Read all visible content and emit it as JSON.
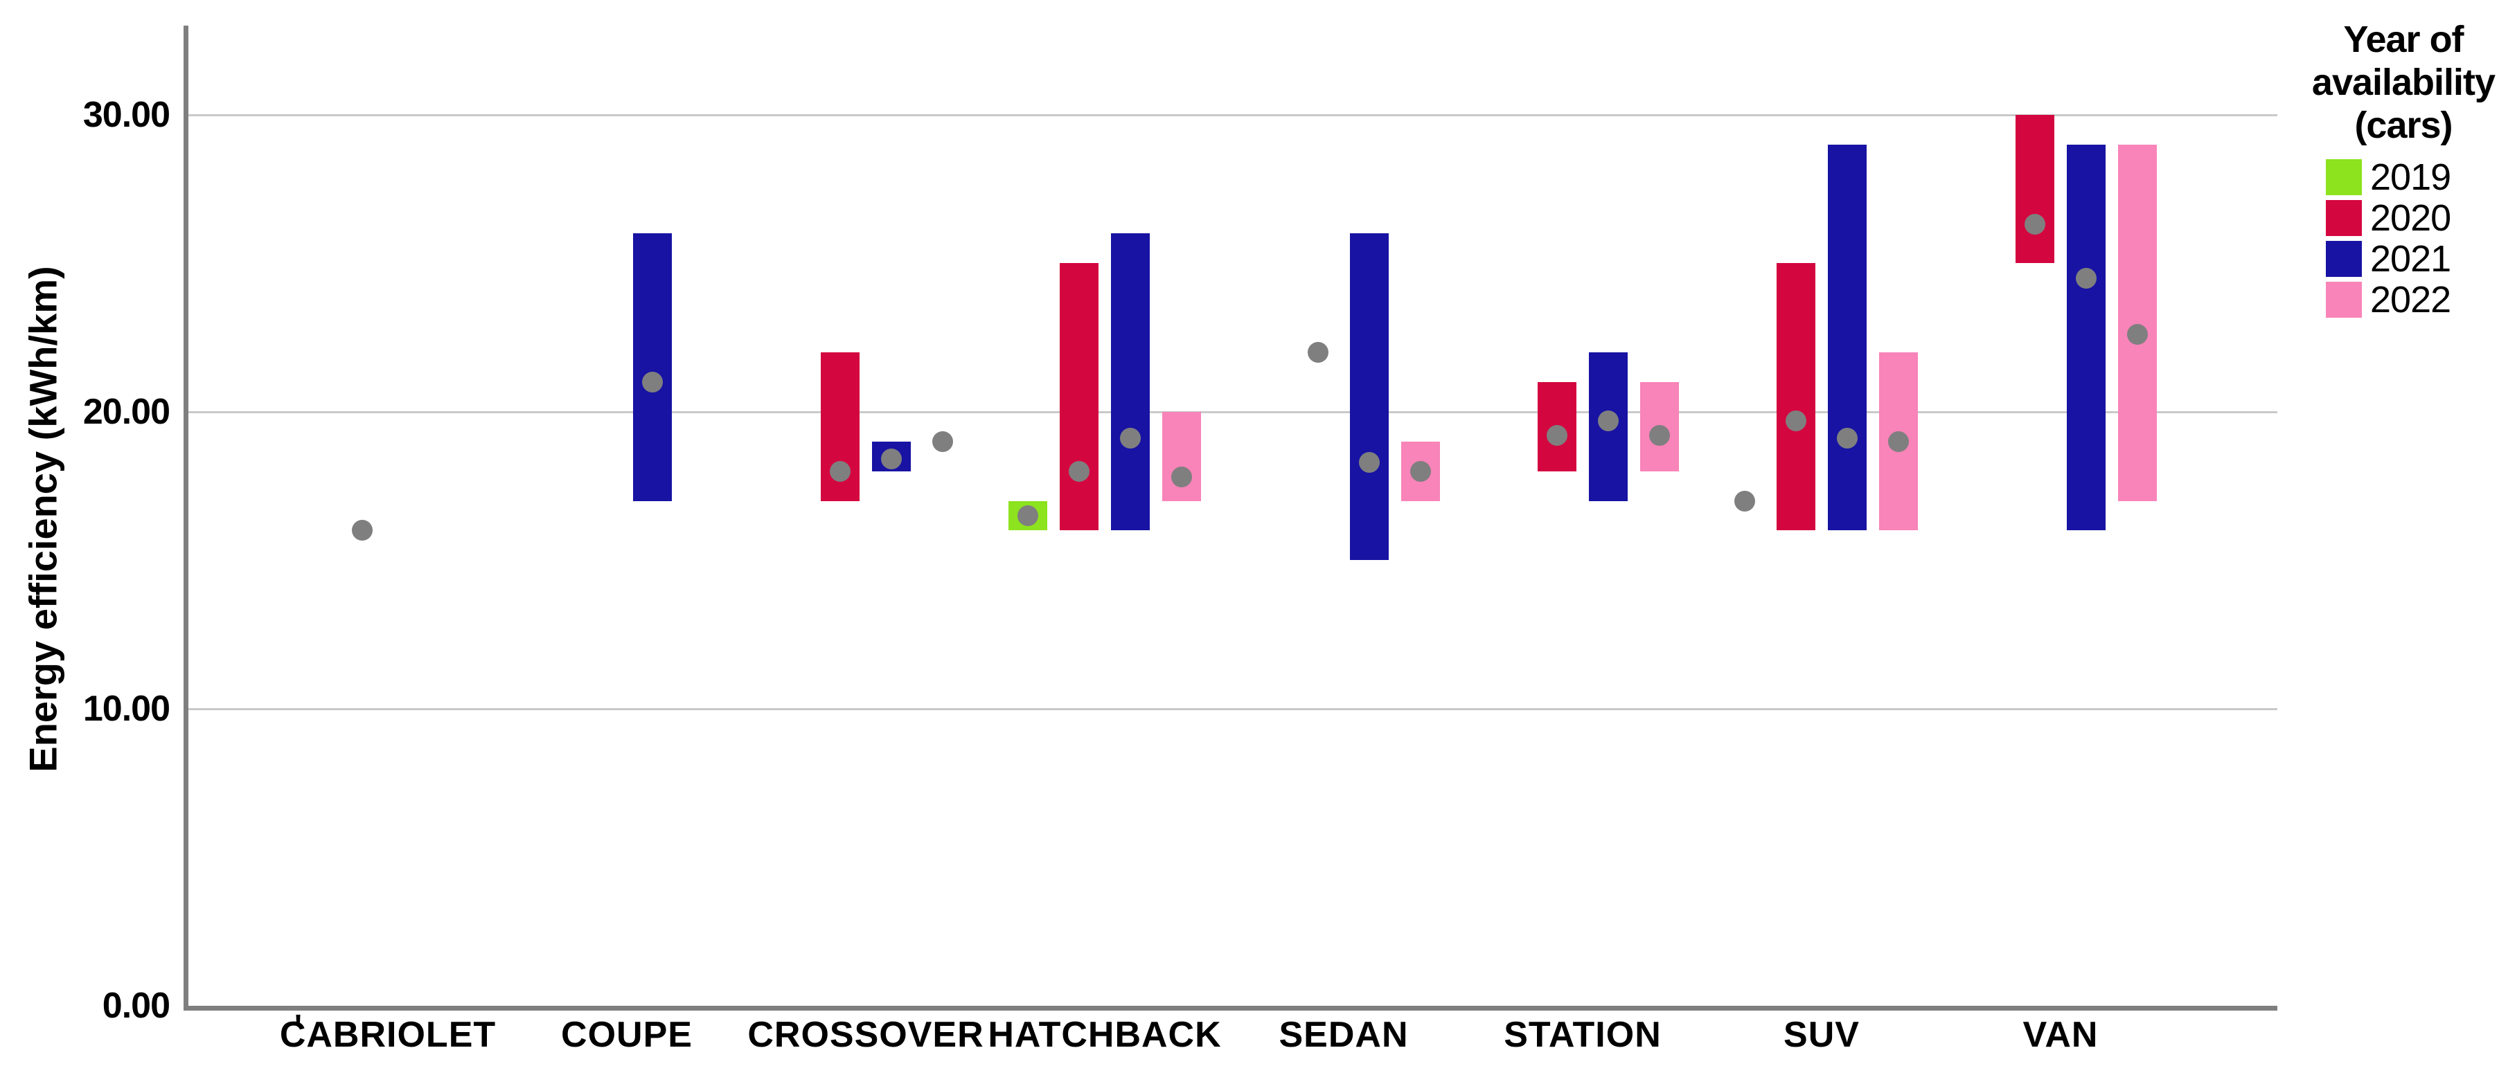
{
  "figure": {
    "ylabel": "Energy efficiency (kWh/km)",
    "x_axis_artifact": "'"
  },
  "legend": {
    "title_lines": [
      "Year of",
      "availability",
      "(cars)"
    ],
    "entries": [
      {
        "label": "2019",
        "color": "#8CE31E"
      },
      {
        "label": "2020",
        "color": "#D4063F"
      },
      {
        "label": "2021",
        "color": "#1813A3"
      },
      {
        "label": "2022",
        "color": "#F884B9"
      }
    ]
  },
  "chart_data": {
    "type": "bar",
    "subtype": "range-bar-with-mean-dot",
    "title": "",
    "xlabel": "",
    "ylabel": "Energy efficiency (kWh/km)",
    "ylim": [
      0,
      33
    ],
    "yticks": [
      {
        "value": 0,
        "label": "0.00"
      },
      {
        "value": 10,
        "label": "10.00"
      },
      {
        "value": 20,
        "label": "20.00"
      },
      {
        "value": 30,
        "label": "30.00"
      }
    ],
    "grid": "horizontal",
    "legend_position": "top-right",
    "dot_color": "#7f7f7f",
    "categories": [
      "CABRIOLET",
      "COUPE",
      "CROSSOVER",
      "HATCHBACK",
      "SEDAN",
      "STATION",
      "SUV",
      "VAN"
    ],
    "series": [
      {
        "name": "2019",
        "color": "#8CE31E",
        "ranges": [
          null,
          null,
          null,
          [
            16,
            17
          ],
          null,
          null,
          null,
          null
        ],
        "dots": [
          null,
          null,
          null,
          16.5,
          null,
          null,
          17,
          null
        ]
      },
      {
        "name": "2020",
        "color": "#D4063F",
        "ranges": [
          null,
          null,
          [
            17,
            22
          ],
          [
            16,
            25
          ],
          null,
          [
            18,
            21
          ],
          [
            16,
            25
          ],
          [
            25,
            30
          ]
        ],
        "dots": [
          16,
          null,
          18,
          18,
          22,
          19.2,
          19.7,
          26.3
        ]
      },
      {
        "name": "2021",
        "color": "#1813A3",
        "ranges": [
          null,
          [
            17,
            26
          ],
          [
            18,
            19
          ],
          [
            16,
            26
          ],
          [
            15,
            26
          ],
          [
            17,
            22
          ],
          [
            16,
            29
          ],
          [
            16,
            29
          ]
        ],
        "dots": [
          null,
          21,
          18.4,
          19.1,
          18.3,
          19.7,
          19.1,
          24.5
        ]
      },
      {
        "name": "2022",
        "color": "#F884B9",
        "ranges": [
          null,
          null,
          null,
          [
            17,
            20
          ],
          [
            17,
            19
          ],
          [
            18,
            21
          ],
          [
            16,
            22
          ],
          [
            17,
            29
          ]
        ],
        "dots": [
          null,
          null,
          19,
          17.8,
          18,
          19.2,
          19,
          22.6
        ]
      }
    ]
  }
}
